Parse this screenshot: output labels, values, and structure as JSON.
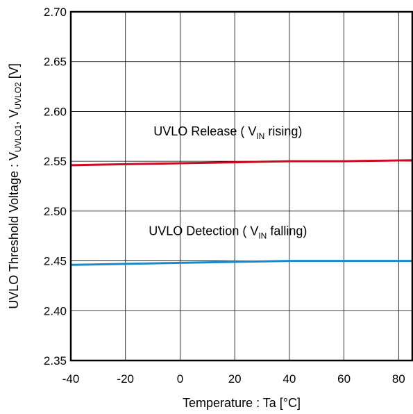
{
  "chart_data": {
    "type": "line",
    "title": "",
    "xlabel": "Temperature : Ta [°C]",
    "ylabel": {
      "main": "UVLO Threshold Voltage : V",
      "sub1": "UVLO1",
      "mid": ", V",
      "sub2": "UVLO2",
      "tail": " [V]"
    },
    "xlim": [
      -40,
      85
    ],
    "ylim": [
      2.35,
      2.7
    ],
    "xticks": [
      -40,
      -20,
      0,
      20,
      40,
      60,
      80
    ],
    "yticks": [
      2.35,
      2.4,
      2.45,
      2.5,
      2.55,
      2.6,
      2.65,
      2.7
    ],
    "xtick_labels": [
      "-40",
      "-20",
      "0",
      "20",
      "40",
      "60",
      "80"
    ],
    "ytick_labels": [
      "2.35",
      "2.40",
      "2.45",
      "2.50",
      "2.55",
      "2.60",
      "2.65",
      "2.70"
    ],
    "grid": true,
    "series": [
      {
        "color": "#cc0a20",
        "x": [
          -40,
          -20,
          0,
          20,
          40,
          60,
          85
        ],
        "y": [
          2.546,
          2.547,
          2.548,
          2.549,
          2.55,
          2.55,
          2.551
        ]
      },
      {
        "color": "#1a8ac6",
        "x": [
          -40,
          -20,
          0,
          20,
          40,
          60,
          85
        ],
        "y": [
          2.446,
          2.447,
          2.448,
          2.449,
          2.45,
          2.45,
          2.45
        ]
      }
    ],
    "annotations": [
      {
        "prefix": "UVLO Release ( V",
        "sub": "IN",
        "suffix": " rising)",
        "x": 17.5,
        "y": 2.576
      },
      {
        "prefix": "UVLO Detection ( V",
        "sub": "IN",
        "suffix": " falling)",
        "x": 17.5,
        "y": 2.476
      }
    ]
  }
}
